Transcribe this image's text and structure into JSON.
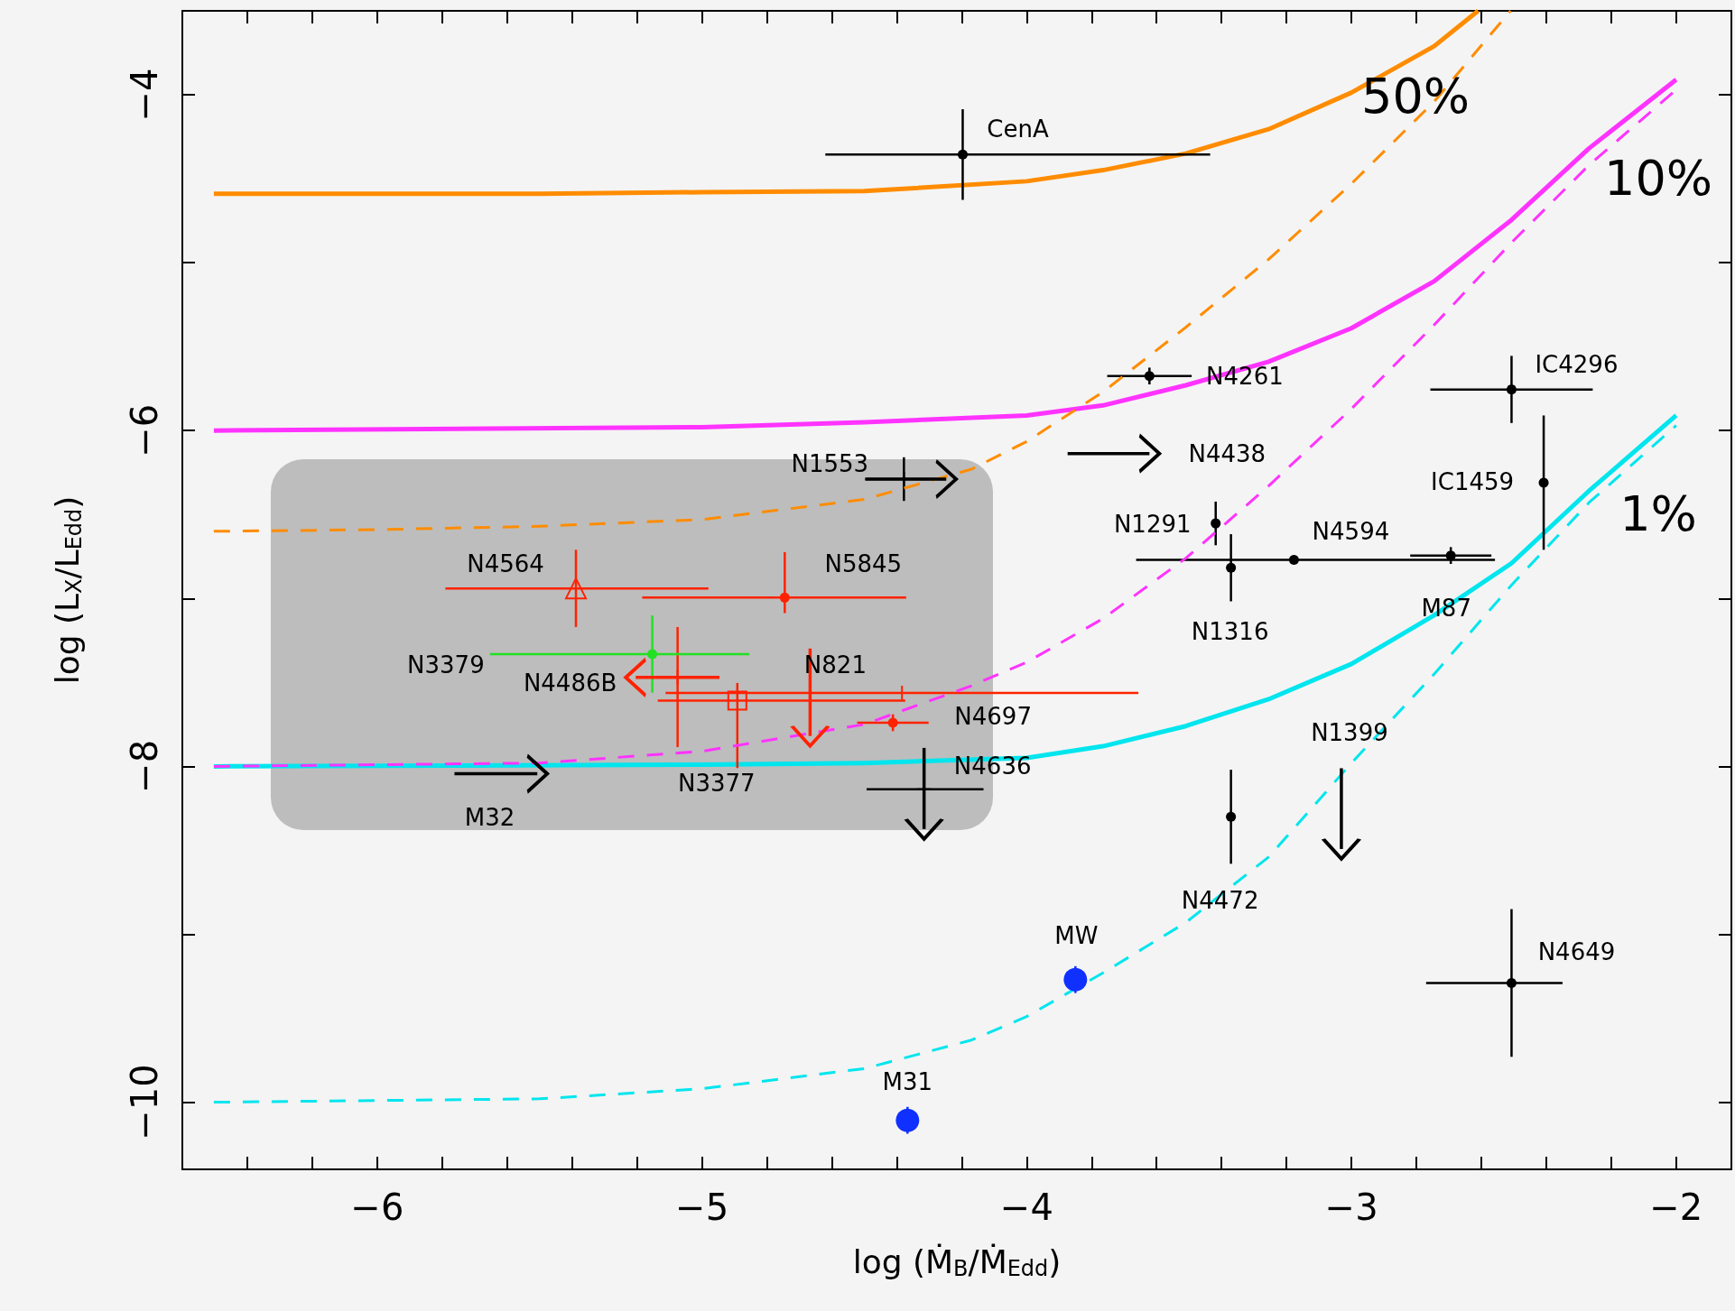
{
  "chart_data": {
    "type": "scatter",
    "xlabel": "log (Ṁ$_{B}$/Ṁ$_{Edd}$)",
    "ylabel": "log (L$_{X}$/L$_{Edd}$)",
    "xlim": [
      -6.6,
      -1.83
    ],
    "ylim": [
      -10.4,
      -3.5
    ],
    "xticks": [
      {
        "value": -6.4,
        "label": null
      },
      {
        "value": -6.2,
        "label": null
      },
      {
        "value": -6,
        "label": "−6"
      },
      {
        "value": -5.8,
        "label": null
      },
      {
        "value": -5.6,
        "label": null
      },
      {
        "value": -5.4,
        "label": null
      },
      {
        "value": -5.2,
        "label": null
      },
      {
        "value": -5,
        "label": "−5"
      },
      {
        "value": -4.8,
        "label": null
      },
      {
        "value": -4.6,
        "label": null
      },
      {
        "value": -4.4,
        "label": null
      },
      {
        "value": -4.2,
        "label": null
      },
      {
        "value": -4,
        "label": "−4"
      },
      {
        "value": -3.8,
        "label": null
      },
      {
        "value": -3.6,
        "label": null
      },
      {
        "value": -3.4,
        "label": null
      },
      {
        "value": -3.2,
        "label": null
      },
      {
        "value": -3,
        "label": "−3"
      },
      {
        "value": -2.8,
        "label": null
      },
      {
        "value": -2.6,
        "label": null
      },
      {
        "value": -2.4,
        "label": null
      },
      {
        "value": -2.2,
        "label": null
      },
      {
        "value": -2,
        "label": "−2"
      }
    ],
    "yticks": [
      {
        "value": -10,
        "label": "−10"
      },
      {
        "value": -9,
        "label": null
      },
      {
        "value": -8,
        "label": "−8"
      },
      {
        "value": -7,
        "label": null
      },
      {
        "value": -6,
        "label": "−6"
      },
      {
        "value": -5,
        "label": null
      },
      {
        "value": -4,
        "label": "−4"
      }
    ],
    "grid": false,
    "series": [
      {
        "type": "line",
        "color": "#ff8c00",
        "line_style": "solid",
        "marker": "none",
        "x": [
          -6.503,
          -6,
          -5.5,
          -5,
          -4.5,
          -4,
          -3.765,
          -3.51,
          -3.255,
          -3,
          -2.745,
          -2.61
        ],
        "values": [
          -4.59,
          -4.59,
          -4.59,
          -4.58,
          -4.574,
          -4.515,
          -4.449,
          -4.35,
          -4.205,
          -3.987,
          -3.71,
          -3.5
        ]
      },
      {
        "type": "line",
        "color": "#ff8c00",
        "line_style": "dashed",
        "marker": "none",
        "x": [
          -6.503,
          -6,
          -5.5,
          -5,
          -4.5,
          -4.17,
          -4,
          -3.765,
          -3.51,
          -3.255,
          -3,
          -2.745,
          -2.51
        ],
        "values": [
          -6.6,
          -6.59,
          -6.57,
          -6.53,
          -6.41,
          -6.23,
          -6.065,
          -5.77,
          -5.385,
          -4.98,
          -4.53,
          -4.04,
          -3.5
        ]
      },
      {
        "type": "line",
        "color": "#ff33ff",
        "line_style": "solid",
        "marker": "none",
        "x": [
          -6.503,
          -5,
          -4.5,
          -4,
          -3.765,
          -3.51,
          -3.255,
          -3,
          -2.745,
          -2.507,
          -2.269,
          -2
        ],
        "values": [
          -6.0,
          -5.98,
          -5.95,
          -5.91,
          -5.85,
          -5.73,
          -5.59,
          -5.39,
          -5.11,
          -4.745,
          -4.32,
          -3.91
        ]
      },
      {
        "type": "line",
        "color": "#ff33ff",
        "line_style": "dashed",
        "marker": "none",
        "x": [
          -6.503,
          -5.5,
          -5,
          -4.5,
          -4.17,
          -4,
          -3.765,
          -3.51,
          -3.255,
          -3,
          -2.745,
          -2.507,
          -2.269,
          -2
        ],
        "values": [
          -8.0,
          -7.98,
          -7.91,
          -7.75,
          -7.52,
          -7.38,
          -7.12,
          -6.76,
          -6.33,
          -5.87,
          -5.37,
          -4.88,
          -4.42,
          -3.97
        ]
      },
      {
        "type": "line",
        "color": "#00e5ee",
        "line_style": "solid",
        "marker": "none",
        "x": [
          -6.503,
          -5,
          -4.5,
          -4,
          -3.765,
          -3.51,
          -3.255,
          -3,
          -2.745,
          -2.507,
          -2.269,
          -2
        ],
        "values": [
          -8.0,
          -7.99,
          -7.98,
          -7.95,
          -7.88,
          -7.76,
          -7.6,
          -7.39,
          -7.1,
          -6.79,
          -6.36,
          -5.91
        ]
      },
      {
        "type": "line",
        "color": "#00e5ee",
        "line_style": "dashed",
        "marker": "none",
        "x": [
          -6.503,
          -5.5,
          -5,
          -4.5,
          -4.17,
          -4,
          -3.765,
          -3.51,
          -3.255,
          -3,
          -2.745,
          -2.507,
          -2.269,
          -2
        ],
        "values": [
          -10.0,
          -9.98,
          -9.92,
          -9.8,
          -9.63,
          -9.49,
          -9.23,
          -8.93,
          -8.54,
          -7.98,
          -7.45,
          -6.92,
          -6.43,
          -5.97
        ]
      },
      {
        "color": "#000000",
        "marker": "circle",
        "x": [
          -4.197,
          -3.622,
          -2.507,
          -2.408,
          -3.418,
          -3.177,
          -3.371,
          -2.694,
          -3.371,
          -2.507
        ],
        "values": [
          -4.356,
          -5.675,
          -5.755,
          -6.31,
          -6.553,
          -6.77,
          -6.817,
          -6.744,
          -8.3,
          -9.29
        ],
        "errors": [
          0.27,
          0.05,
          0.2,
          0.4,
          0.13,
          null,
          0.2,
          0.05,
          0.28,
          0.44
        ],
        "xerrors": [
          [
            -4.62,
            -3.435
          ],
          0.13,
          0.25,
          null,
          null,
          [
            -3.663,
            -2.558
          ],
          null,
          0.125,
          null,
          [
            -2.77,
            -2.35
          ]
        ]
      },
      {
        "color": "#000000",
        "marker": "cross",
        "x": [
          -4.378,
          -4.316
        ],
        "values": [
          -6.289,
          -8.136
        ],
        "errors": [
          0.13,
          null
        ],
        "xerrors": [
          [
            -4.497,
            -4.248
          ],
          [
            -4.493,
            -4.133
          ]
        ]
      },
      {
        "type": "line",
        "color": "#000000",
        "marker": "cross",
        "x": [
          -3.874,
          -3.622
        ],
        "values": [
          -6.137,
          -6.137
        ]
      },
      {
        "type": "line",
        "color": "#000000",
        "marker": "cross",
        "x": [
          -4.497,
          -4.248
        ],
        "values": [
          -6.289,
          -6.289
        ]
      },
      {
        "type": "line",
        "color": "#000000",
        "marker": "cross",
        "x": [
          -5.762,
          -5.507
        ],
        "values": [
          -8.044,
          -8.044
        ]
      },
      {
        "type": "line",
        "color": "#000000",
        "marker": "cross",
        "x": [
          -4.316,
          -4.316
        ],
        "values": [
          -7.89,
          -8.373
        ]
      },
      {
        "type": "line",
        "color": "#000000",
        "marker": "cross",
        "x": [
          -3.031,
          -3.031
        ],
        "values": [
          -8.011,
          -8.492
        ]
      },
      {
        "color": "#ff2200",
        "marker": "triangle",
        "x": [
          -5.388
        ],
        "values": [
          -6.94
        ],
        "errors": [
          0.23
        ],
        "xerrors": [
          [
            -5.79,
            -4.98
          ]
        ]
      },
      {
        "color": "#ff2200",
        "marker": "circle",
        "x": [
          -4.745
        ],
        "values": [
          -6.995
        ],
        "errors": [
          [
            -7.087,
            -6.724
          ]
        ],
        "xerrors": [
          [
            -5.184,
            -4.371
          ]
        ]
      },
      {
        "color": "#ff2200",
        "marker": "square",
        "x": [
          -4.891
        ],
        "values": [
          -7.608
        ],
        "errors": [
          [
            -8.01,
            -7.503
          ]
        ],
        "xerrors": [
          [
            -5.136,
            -4.374
          ]
        ]
      },
      {
        "color": "#ff2200",
        "marker": "circle",
        "x": [
          -4.412
        ],
        "values": [
          -7.74
        ],
        "errors": [
          0.05
        ],
        "xerrors": [
          0.11
        ]
      },
      {
        "color": "#ff2200",
        "marker": "cross",
        "x": [
          -5.075,
          -4.384
        ],
        "values": [
          -7.47,
          -7.562
        ],
        "errors": [
          [
            -7.885,
            -7.17
          ],
          null
        ],
        "xerrors": [
          null,
          [
            -5.112,
            -3.656
          ]
        ]
      },
      {
        "type": "line",
        "color": "#ff2200",
        "marker": "cross",
        "x": [
          -4.946,
          -5.204
        ],
        "values": [
          -7.47,
          -7.47
        ]
      },
      {
        "type": "line",
        "color": "#ff2200",
        "marker": "cross",
        "x": [
          -4.667,
          -4.667
        ],
        "values": [
          -7.298,
          -7.819
        ]
      },
      {
        "color": "#22e022",
        "marker": "circle",
        "x": [
          -5.153
        ],
        "values": [
          -7.331
        ],
        "errors": [
          0.23
        ],
        "xerrors": [
          [
            -5.653,
            -4.854
          ]
        ]
      },
      {
        "type": "bubble",
        "color": "#1030ff",
        "marker": "circle",
        "x": [
          -3.85,
          -4.367
        ],
        "values": [
          -9.27,
          -10.108
        ],
        "sizes": [
          1,
          1
        ],
        "errors": [
          0.08,
          0.08
        ]
      }
    ],
    "annotations": [
      {
        "text": "CenA",
        "x": -4.197,
        "y": -4.356
      },
      {
        "text": "N4261",
        "x": -3.492,
        "y": -5.675
      },
      {
        "text": "IC4296",
        "x": -2.507,
        "y": -5.755
      },
      {
        "text": "N4438",
        "x": -3.622,
        "y": -6.137
      },
      {
        "text": "N1553",
        "x": -4.378,
        "y": -6.289
      },
      {
        "text": "IC1459",
        "x": -2.408,
        "y": -6.31
      },
      {
        "text": "N1291",
        "x": -3.418,
        "y": -6.553
      },
      {
        "text": "N4594",
        "x": -3.177,
        "y": -6.77
      },
      {
        "text": "N4564",
        "x": -5.388,
        "y": -6.94
      },
      {
        "text": "N5845",
        "x": -4.745,
        "y": -6.995
      },
      {
        "text": "N1316",
        "x": -3.371,
        "y": -6.817
      },
      {
        "text": "M87",
        "x": -2.694,
        "y": -6.744
      },
      {
        "text": "N3379",
        "x": -5.653,
        "y": -7.331
      },
      {
        "text": "N821",
        "x": -4.667,
        "y": -7.298
      },
      {
        "text": "N4486B",
        "x": -5.075,
        "y": -7.47
      },
      {
        "text": "N4697",
        "x": -4.412,
        "y": -7.74
      },
      {
        "text": "N1399",
        "x": -3.031,
        "y": -8.011
      },
      {
        "text": "N4636",
        "x": -4.316,
        "y": -8.136
      },
      {
        "text": "N3377",
        "x": -4.891,
        "y": -7.608
      },
      {
        "text": "M32",
        "x": -5.762,
        "y": -8.044
      },
      {
        "text": "N4472",
        "x": -3.371,
        "y": -8.58
      },
      {
        "text": "N4649",
        "x": -2.507,
        "y": -9.29
      },
      {
        "text": "MW",
        "x": -3.85,
        "y": -9.27
      },
      {
        "text": "M31",
        "x": -4.367,
        "y": -10.108
      },
      {
        "text": "50%",
        "x": -3,
        "y": -3.987
      },
      {
        "text": "10%",
        "x": -2.269,
        "y": -4.42
      },
      {
        "text": "1%",
        "x": -2.269,
        "y": -6.36
      }
    ]
  }
}
